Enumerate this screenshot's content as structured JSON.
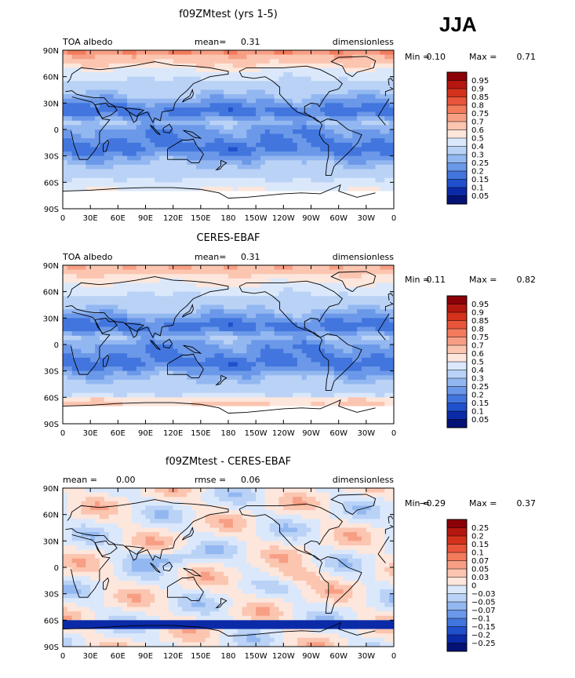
{
  "season": "JJA",
  "lat_labels": [
    "90N",
    "60N",
    "30N",
    "0",
    "30S",
    "60S",
    "90S"
  ],
  "lon_labels": [
    "0",
    "30E",
    "60E",
    "90E",
    "120E",
    "150E",
    "180",
    "150W",
    "120W",
    "90W",
    "60W",
    "30W",
    "0"
  ],
  "panels": [
    {
      "title": "f09ZMtest (yrs 1-5)",
      "left_label": "TOA albedo",
      "center_label": "mean=",
      "center_value": "0.31",
      "right_label": "dimensionless",
      "min_label": "Min =",
      "min_value": "0.10",
      "max_label": "Max =",
      "max_value": "0.71",
      "kind": "albedo",
      "levels": [
        "0.95",
        "0.9",
        "0.85",
        "0.8",
        "0.75",
        "0.7",
        "0.6",
        "0.5",
        "0.4",
        "0.3",
        "0.25",
        "0.2",
        "0.15",
        "0.1",
        "0.05"
      ],
      "colors": [
        "#8c0008",
        "#b4170f",
        "#d4321c",
        "#e8553a",
        "#f27b5c",
        "#f79f85",
        "#fbc5b0",
        "#fde6dc",
        "#dbe8fb",
        "#b9d2f6",
        "#93b7f0",
        "#6b98e8",
        "#4276de",
        "#2050cc",
        "#0a2aa8",
        "#041275"
      ]
    },
    {
      "title": "CERES-EBAF",
      "left_label": "TOA albedo",
      "center_label": "mean=",
      "center_value": "0.31",
      "right_label": "dimensionless",
      "min_label": "Min =",
      "min_value": "0.11",
      "max_label": "Max =",
      "max_value": "0.82",
      "kind": "albedo",
      "levels": [
        "0.95",
        "0.9",
        "0.85",
        "0.8",
        "0.75",
        "0.7",
        "0.6",
        "0.5",
        "0.4",
        "0.3",
        "0.25",
        "0.2",
        "0.15",
        "0.1",
        "0.05"
      ],
      "colors": [
        "#8c0008",
        "#b4170f",
        "#d4321c",
        "#e8553a",
        "#f27b5c",
        "#f79f85",
        "#fbc5b0",
        "#fde6dc",
        "#dbe8fb",
        "#b9d2f6",
        "#93b7f0",
        "#6b98e8",
        "#4276de",
        "#2050cc",
        "#0a2aa8",
        "#041275"
      ]
    },
    {
      "title": "f09ZMtest - CERES-EBAF",
      "left_label": "mean =",
      "left_value": "0.00",
      "center_label": "rmse =",
      "center_value": "0.06",
      "right_label": "dimensionless",
      "min_label": "Min =",
      "min_value": "−0.29",
      "max_label": "Max =",
      "max_value": "0.37",
      "kind": "diff",
      "levels": [
        "0.25",
        "0.2",
        "0.15",
        "0.1",
        "0.07",
        "0.05",
        "0.03",
        "0",
        "−0.03",
        "−0.05",
        "−0.07",
        "−0.1",
        "−0.15",
        "−0.2",
        "−0.25"
      ],
      "colors": [
        "#8c0008",
        "#b4170f",
        "#d4321c",
        "#e8553a",
        "#f27b5c",
        "#f79f85",
        "#fbc5b0",
        "#fde6dc",
        "#dbe8fb",
        "#b9d2f6",
        "#93b7f0",
        "#6b98e8",
        "#4276de",
        "#2050cc",
        "#0a2aa8",
        "#041275"
      ]
    }
  ]
}
